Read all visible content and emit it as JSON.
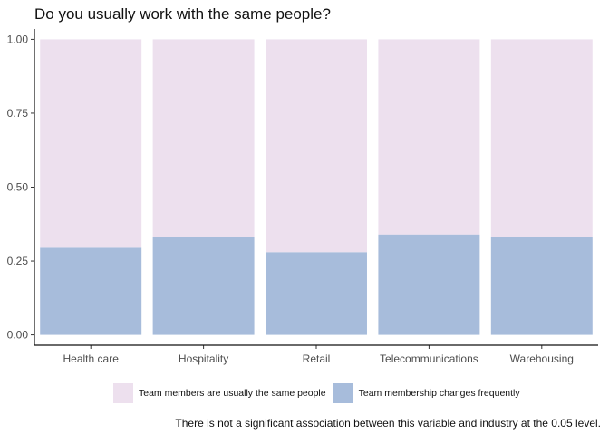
{
  "chart_data": {
    "type": "bar",
    "stacked": true,
    "title": "Do you usually work with the same people?",
    "categories": [
      "Health care",
      "Hospitality",
      "Retail",
      "Telecommunications",
      "Warehousing"
    ],
    "series": [
      {
        "name": "Team membership changes frequently",
        "color": "#a7bcdb",
        "values": [
          0.295,
          0.33,
          0.28,
          0.34,
          0.33
        ]
      },
      {
        "name": "Team members are usually the same people",
        "color": "#ede0ee",
        "values": [
          0.705,
          0.67,
          0.72,
          0.66,
          0.67
        ]
      }
    ],
    "legend_order": [
      1,
      0
    ],
    "y_ticks": [
      "0.00",
      "0.25",
      "0.50",
      "0.75",
      "1.00"
    ],
    "y_tick_values": [
      0,
      0.25,
      0.5,
      0.75,
      1.0
    ],
    "ylim": [
      -0.035,
      1.035
    ],
    "grid": false,
    "legend_position": "bottom",
    "caption": "There is not a significant association between this variable and industry at the 0.05 level."
  }
}
